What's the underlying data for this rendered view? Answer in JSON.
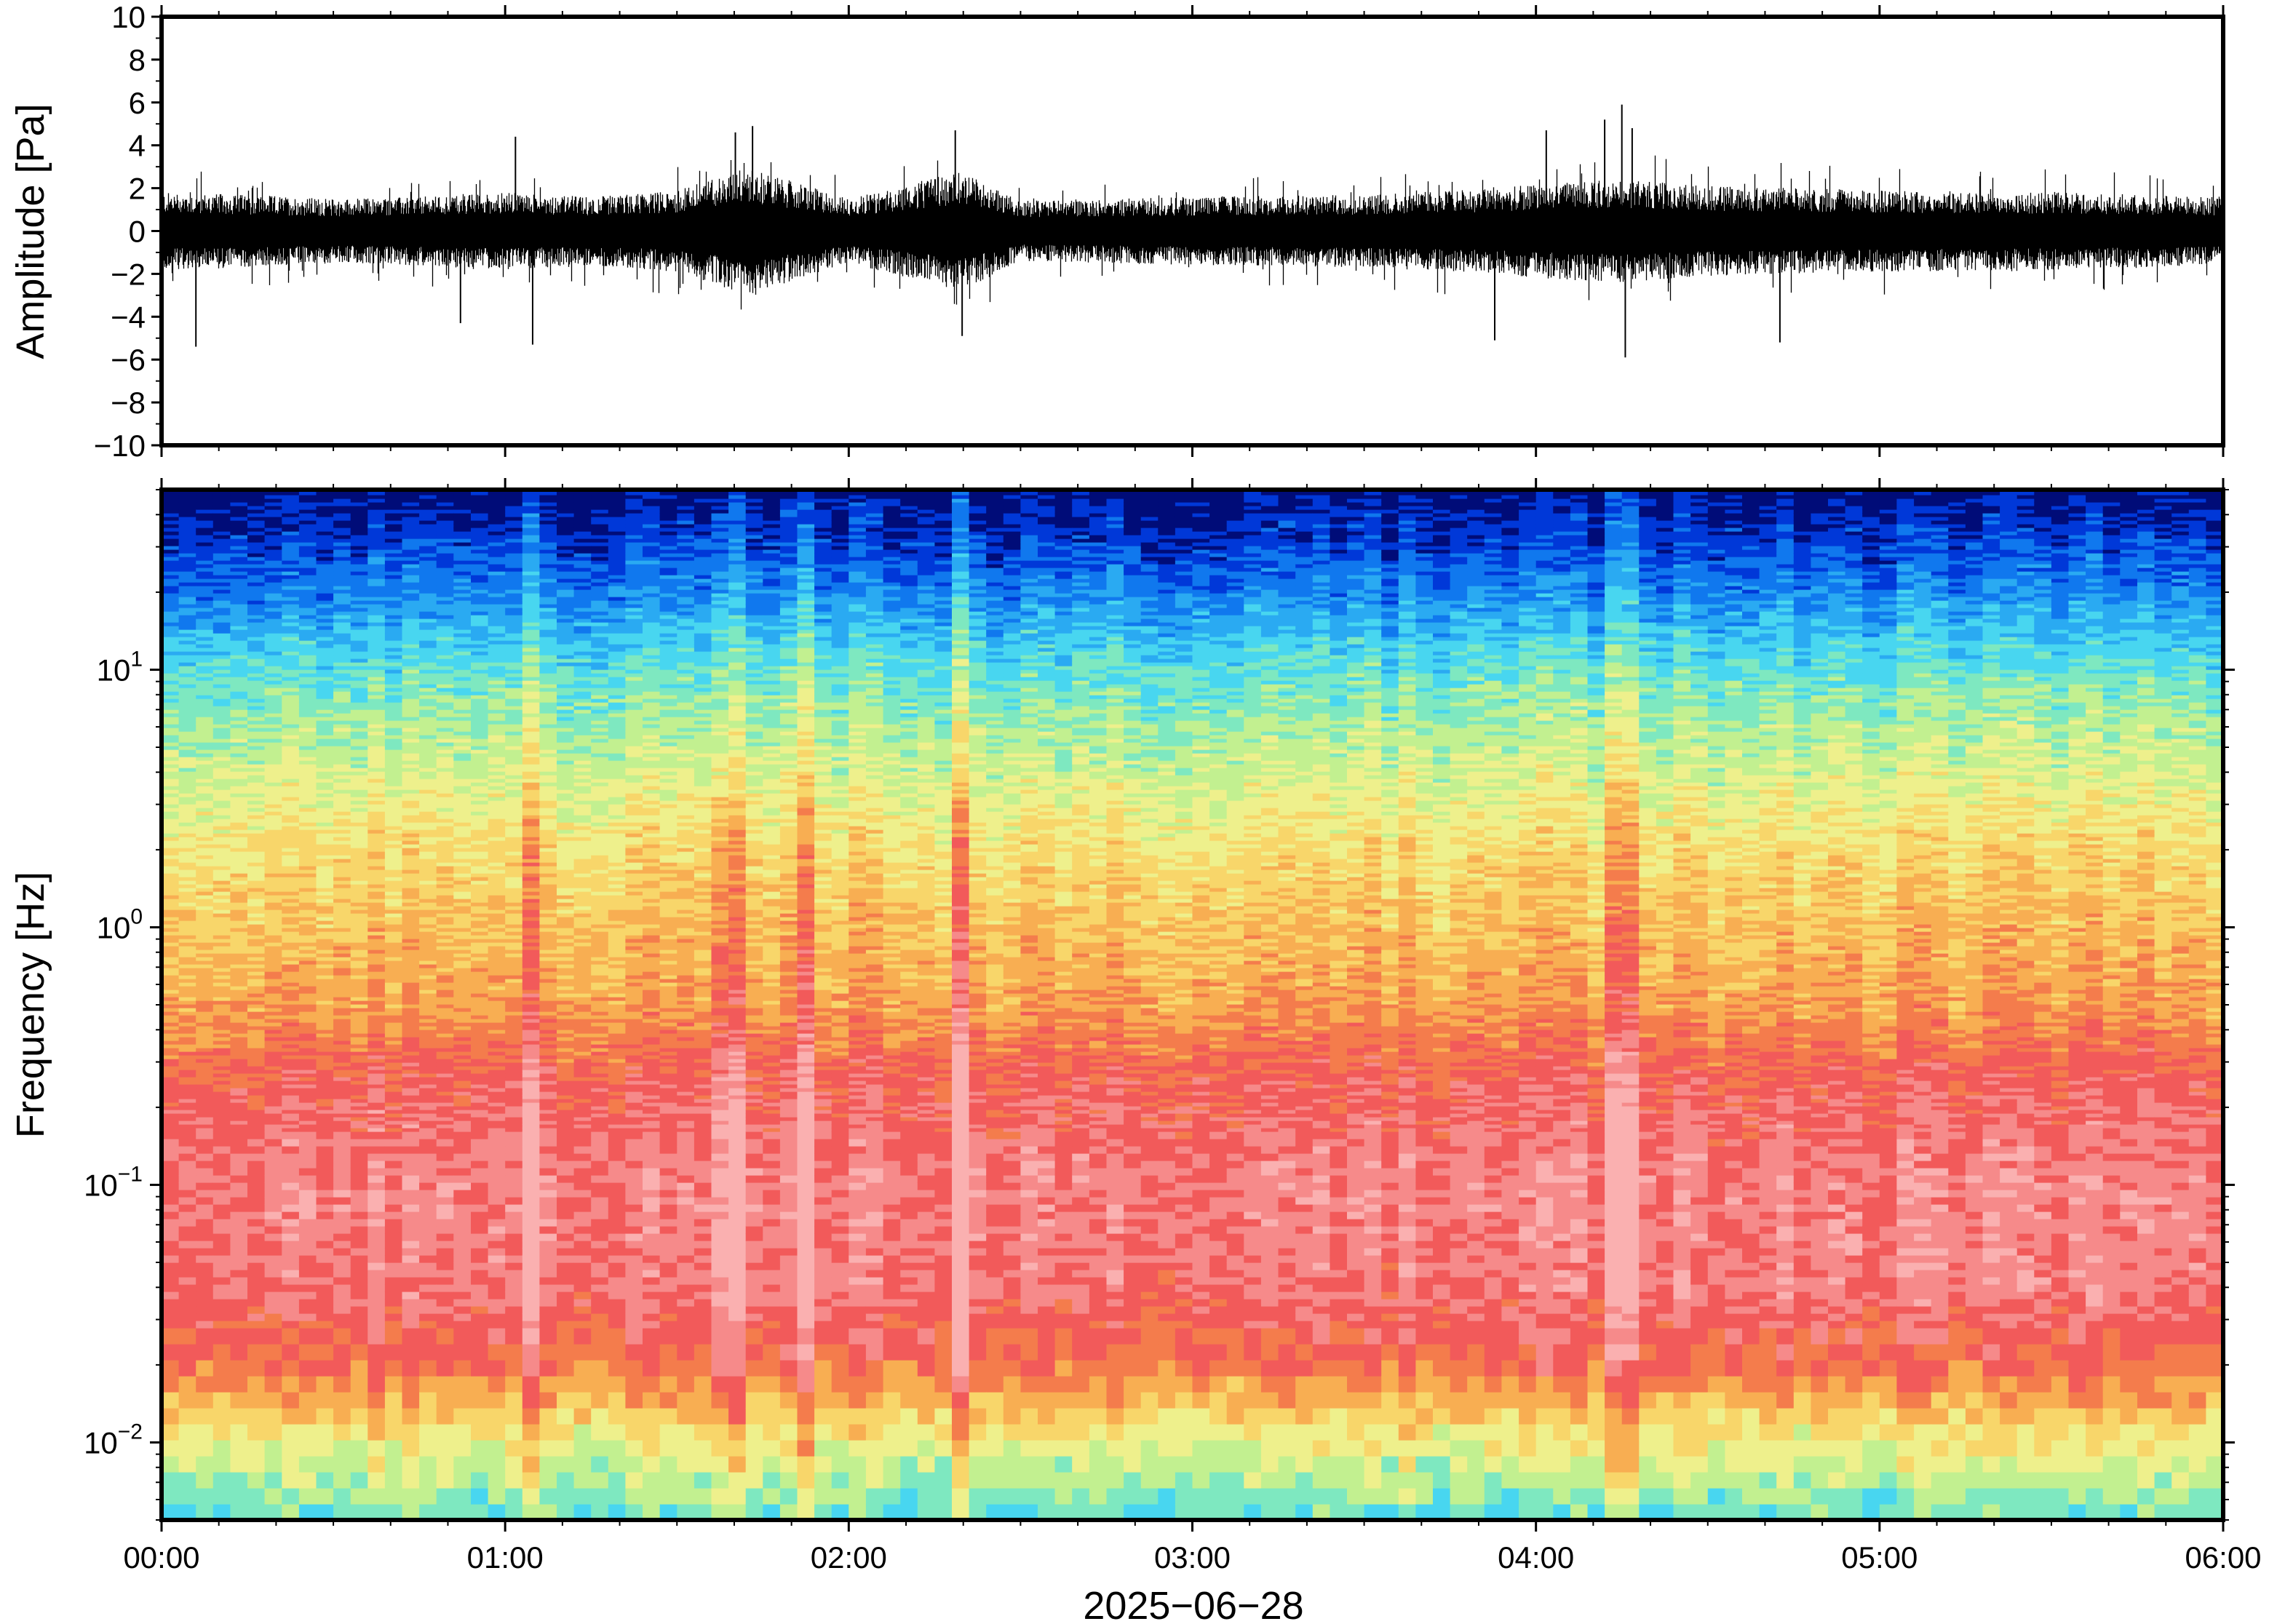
{
  "chart_data": [
    {
      "id": "waveform",
      "type": "line",
      "ylabel": "Amplitude [Pa]",
      "ylim": [
        -10,
        10
      ],
      "yticks": [
        "10",
        "8",
        "6",
        "4",
        "2",
        "0",
        "−2",
        "−4",
        "−6",
        "−8",
        "−10"
      ],
      "ytick_values": [
        10,
        8,
        6,
        4,
        2,
        0,
        -2,
        -4,
        -6,
        -8,
        -10
      ],
      "xlim_hours": [
        0,
        6
      ],
      "line_color": "#000000",
      "envelope": {
        "x_hours": [
          0,
          0.25,
          0.5,
          0.75,
          1.0,
          1.25,
          1.5,
          1.7,
          2.0,
          2.33,
          2.5,
          3.0,
          3.5,
          3.9,
          4.0,
          4.25,
          4.5,
          5.0,
          5.5,
          6.0
        ],
        "typical_peak": [
          1.8,
          1.7,
          1.5,
          1.6,
          1.8,
          1.6,
          1.9,
          3.0,
          1.5,
          2.8,
          1.4,
          1.6,
          1.7,
          2.0,
          2.2,
          2.4,
          2.1,
          1.9,
          1.8,
          1.6
        ]
      },
      "spikes": [
        {
          "x_hours": 0.1,
          "value": -5.4
        },
        {
          "x_hours": 0.87,
          "value": -4.3
        },
        {
          "x_hours": 1.03,
          "value": 4.4
        },
        {
          "x_hours": 1.08,
          "value": -5.3
        },
        {
          "x_hours": 1.67,
          "value": 4.6
        },
        {
          "x_hours": 1.72,
          "value": 4.9
        },
        {
          "x_hours": 2.31,
          "value": 4.7
        },
        {
          "x_hours": 2.33,
          "value": -4.9
        },
        {
          "x_hours": 3.88,
          "value": -5.1
        },
        {
          "x_hours": 4.03,
          "value": 4.7
        },
        {
          "x_hours": 4.2,
          "value": 5.2
        },
        {
          "x_hours": 4.25,
          "value": 5.9
        },
        {
          "x_hours": 4.26,
          "value": -5.9
        },
        {
          "x_hours": 4.28,
          "value": 4.8
        },
        {
          "x_hours": 4.71,
          "value": -5.2
        }
      ]
    },
    {
      "id": "spectrogram",
      "type": "heatmap",
      "ylabel": "Frequency [Hz]",
      "yscale": "log",
      "ylim": [
        0.005,
        50
      ],
      "yticks": [
        {
          "value": 10,
          "base": "10",
          "exp": "1"
        },
        {
          "value": 1,
          "base": "10",
          "exp": "0"
        },
        {
          "value": 0.1,
          "base": "10",
          "exp": "−1"
        },
        {
          "value": 0.01,
          "base": "10",
          "exp": "−2"
        }
      ],
      "xlim_hours": [
        0,
        6
      ],
      "xticks": [
        "00:00",
        "01:00",
        "02:00",
        "03:00",
        "04:00",
        "05:00",
        "06:00"
      ],
      "xtick_values_hours": [
        0,
        1,
        2,
        3,
        4,
        5,
        6
      ],
      "xlabel": "2025−06−28",
      "colormap": [
        "#000c78",
        "#0038d8",
        "#1078ee",
        "#2aaaf2",
        "#48d6f0",
        "#7ee8c0",
        "#c2f090",
        "#eef08c",
        "#f8d66a",
        "#f8ae52",
        "#f47c4c",
        "#f25a5a",
        "#f68a8a",
        "#fab0b0"
      ],
      "power_profile": {
        "log10_freq": [
          -2.3,
          -2.0,
          -1.7,
          -1.4,
          -1.0,
          -0.6,
          -0.3,
          0.0,
          0.3,
          0.6,
          0.9,
          1.1,
          1.3,
          1.5,
          1.7
        ],
        "level": [
          0.35,
          0.55,
          0.8,
          0.9,
          0.92,
          0.85,
          0.72,
          0.66,
          0.6,
          0.5,
          0.4,
          0.3,
          0.18,
          0.08,
          0.0
        ]
      },
      "highlights": [
        {
          "x_hours": 1.07,
          "width_hours": 0.07,
          "boost": 0.07
        },
        {
          "x_hours": 1.65,
          "width_hours": 0.1,
          "boost": 0.08
        },
        {
          "x_hours": 1.85,
          "width_hours": 0.05,
          "boost": 0.08
        },
        {
          "x_hours": 2.33,
          "width_hours": 0.06,
          "boost": 0.12
        },
        {
          "x_hours": 4.25,
          "width_hours": 0.08,
          "boost": 0.06
        }
      ]
    }
  ]
}
